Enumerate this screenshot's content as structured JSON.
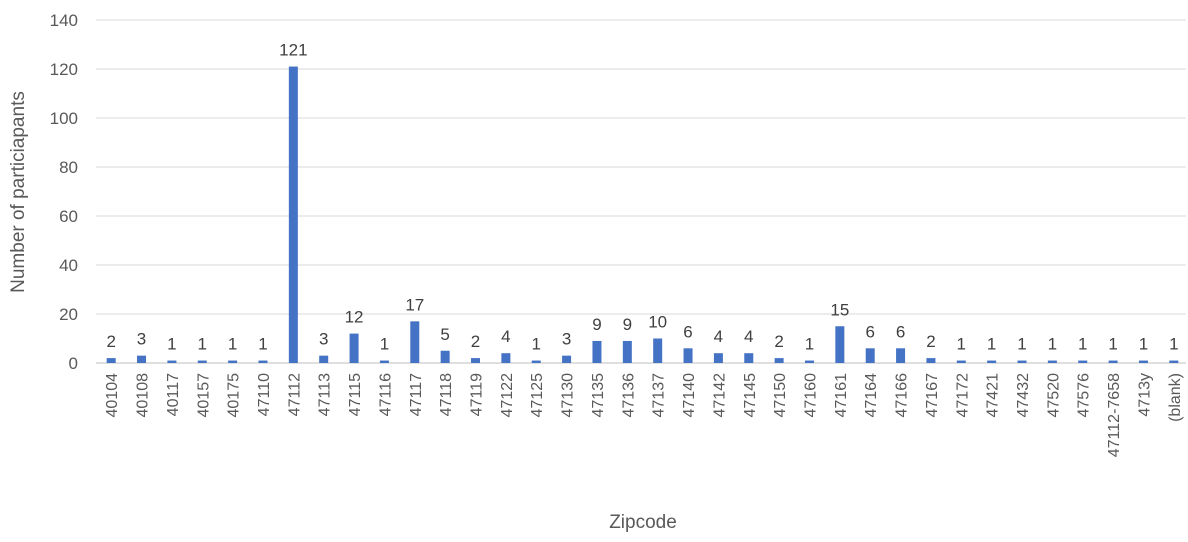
{
  "chart_data": {
    "type": "bar",
    "title": "",
    "xlabel": "Zipcode",
    "ylabel": "Number of particiapants",
    "ylim": [
      0,
      140
    ],
    "yticks": [
      0,
      20,
      40,
      60,
      80,
      100,
      120,
      140
    ],
    "grid": true,
    "legend": "none",
    "bar_color": "#4472C4",
    "data_labels": true,
    "categories": [
      "40104",
      "40108",
      "40117",
      "40157",
      "40175",
      "47110",
      "47112",
      "47113",
      "47115",
      "47116",
      "47117",
      "47118",
      "47119",
      "47122",
      "47125",
      "47130",
      "47135",
      "47136",
      "47137",
      "47140",
      "47142",
      "47145",
      "47150",
      "47160",
      "47161",
      "47164",
      "47166",
      "47167",
      "47172",
      "47421",
      "47432",
      "47520",
      "47576",
      "47112-7658",
      "4713y",
      "(blank)"
    ],
    "values": [
      2,
      3,
      1,
      1,
      1,
      1,
      121,
      3,
      12,
      1,
      17,
      5,
      2,
      4,
      1,
      3,
      9,
      9,
      10,
      6,
      4,
      4,
      2,
      1,
      15,
      6,
      6,
      2,
      1,
      1,
      1,
      1,
      1,
      1,
      1,
      1
    ]
  }
}
